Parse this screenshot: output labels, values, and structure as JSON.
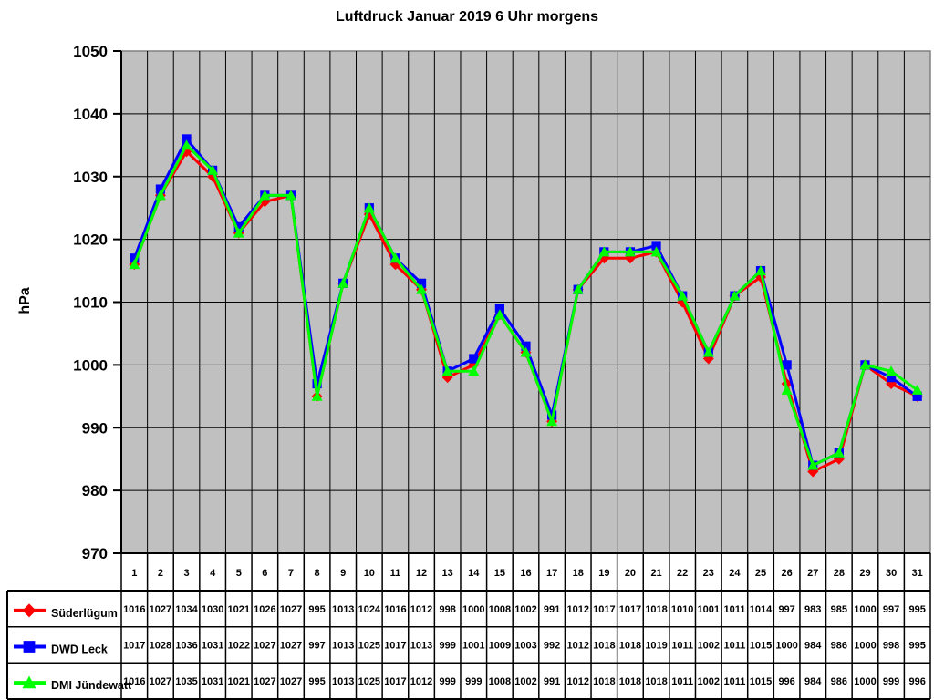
{
  "title": "Luftdruck Januar 2019 6 Uhr morgens",
  "chart_data": {
    "type": "line",
    "title": "Luftdruck Januar 2019 6 Uhr morgens",
    "xlabel": "",
    "ylabel": "hPa",
    "ylim": [
      970,
      1050
    ],
    "ytick_step": 10,
    "grid": true,
    "plot_bg": "#C0C0C0",
    "plot_border": "#808080",
    "legend_position": "table-left",
    "categories": [
      "1",
      "2",
      "3",
      "4",
      "5",
      "6",
      "7",
      "8",
      "9",
      "10",
      "11",
      "12",
      "13",
      "14",
      "15",
      "16",
      "17",
      "18",
      "19",
      "20",
      "21",
      "22",
      "23",
      "24",
      "25",
      "26",
      "27",
      "28",
      "29",
      "30",
      "31"
    ],
    "series": [
      {
        "name": "Süderlügum",
        "color": "#FF0000",
        "marker": "diamond",
        "values": [
          1016,
          1027,
          1034,
          1030,
          1021,
          1026,
          1027,
          995,
          1013,
          1024,
          1016,
          1012,
          998,
          1000,
          1008,
          1002,
          991,
          1012,
          1017,
          1017,
          1018,
          1010,
          1001,
          1011,
          1014,
          997,
          983,
          985,
          1000,
          997,
          995
        ]
      },
      {
        "name": "DWD Leck",
        "color": "#0000FF",
        "marker": "square",
        "values": [
          1017,
          1028,
          1036,
          1031,
          1022,
          1027,
          1027,
          997,
          1013,
          1025,
          1017,
          1013,
          999,
          1001,
          1009,
          1003,
          992,
          1012,
          1018,
          1018,
          1019,
          1011,
          1002,
          1011,
          1015,
          1000,
          984,
          986,
          1000,
          998,
          995
        ]
      },
      {
        "name": "DMI Jündewatt",
        "color": "#00FF00",
        "marker": "triangle",
        "values": [
          1016,
          1027,
          1035,
          1031,
          1021,
          1027,
          1027,
          995,
          1013,
          1025,
          1017,
          1012,
          999,
          999,
          1008,
          1002,
          991,
          1012,
          1018,
          1018,
          1018,
          1011,
          1002,
          1011,
          1015,
          996,
          984,
          986,
          1000,
          999,
          996
        ]
      }
    ]
  }
}
